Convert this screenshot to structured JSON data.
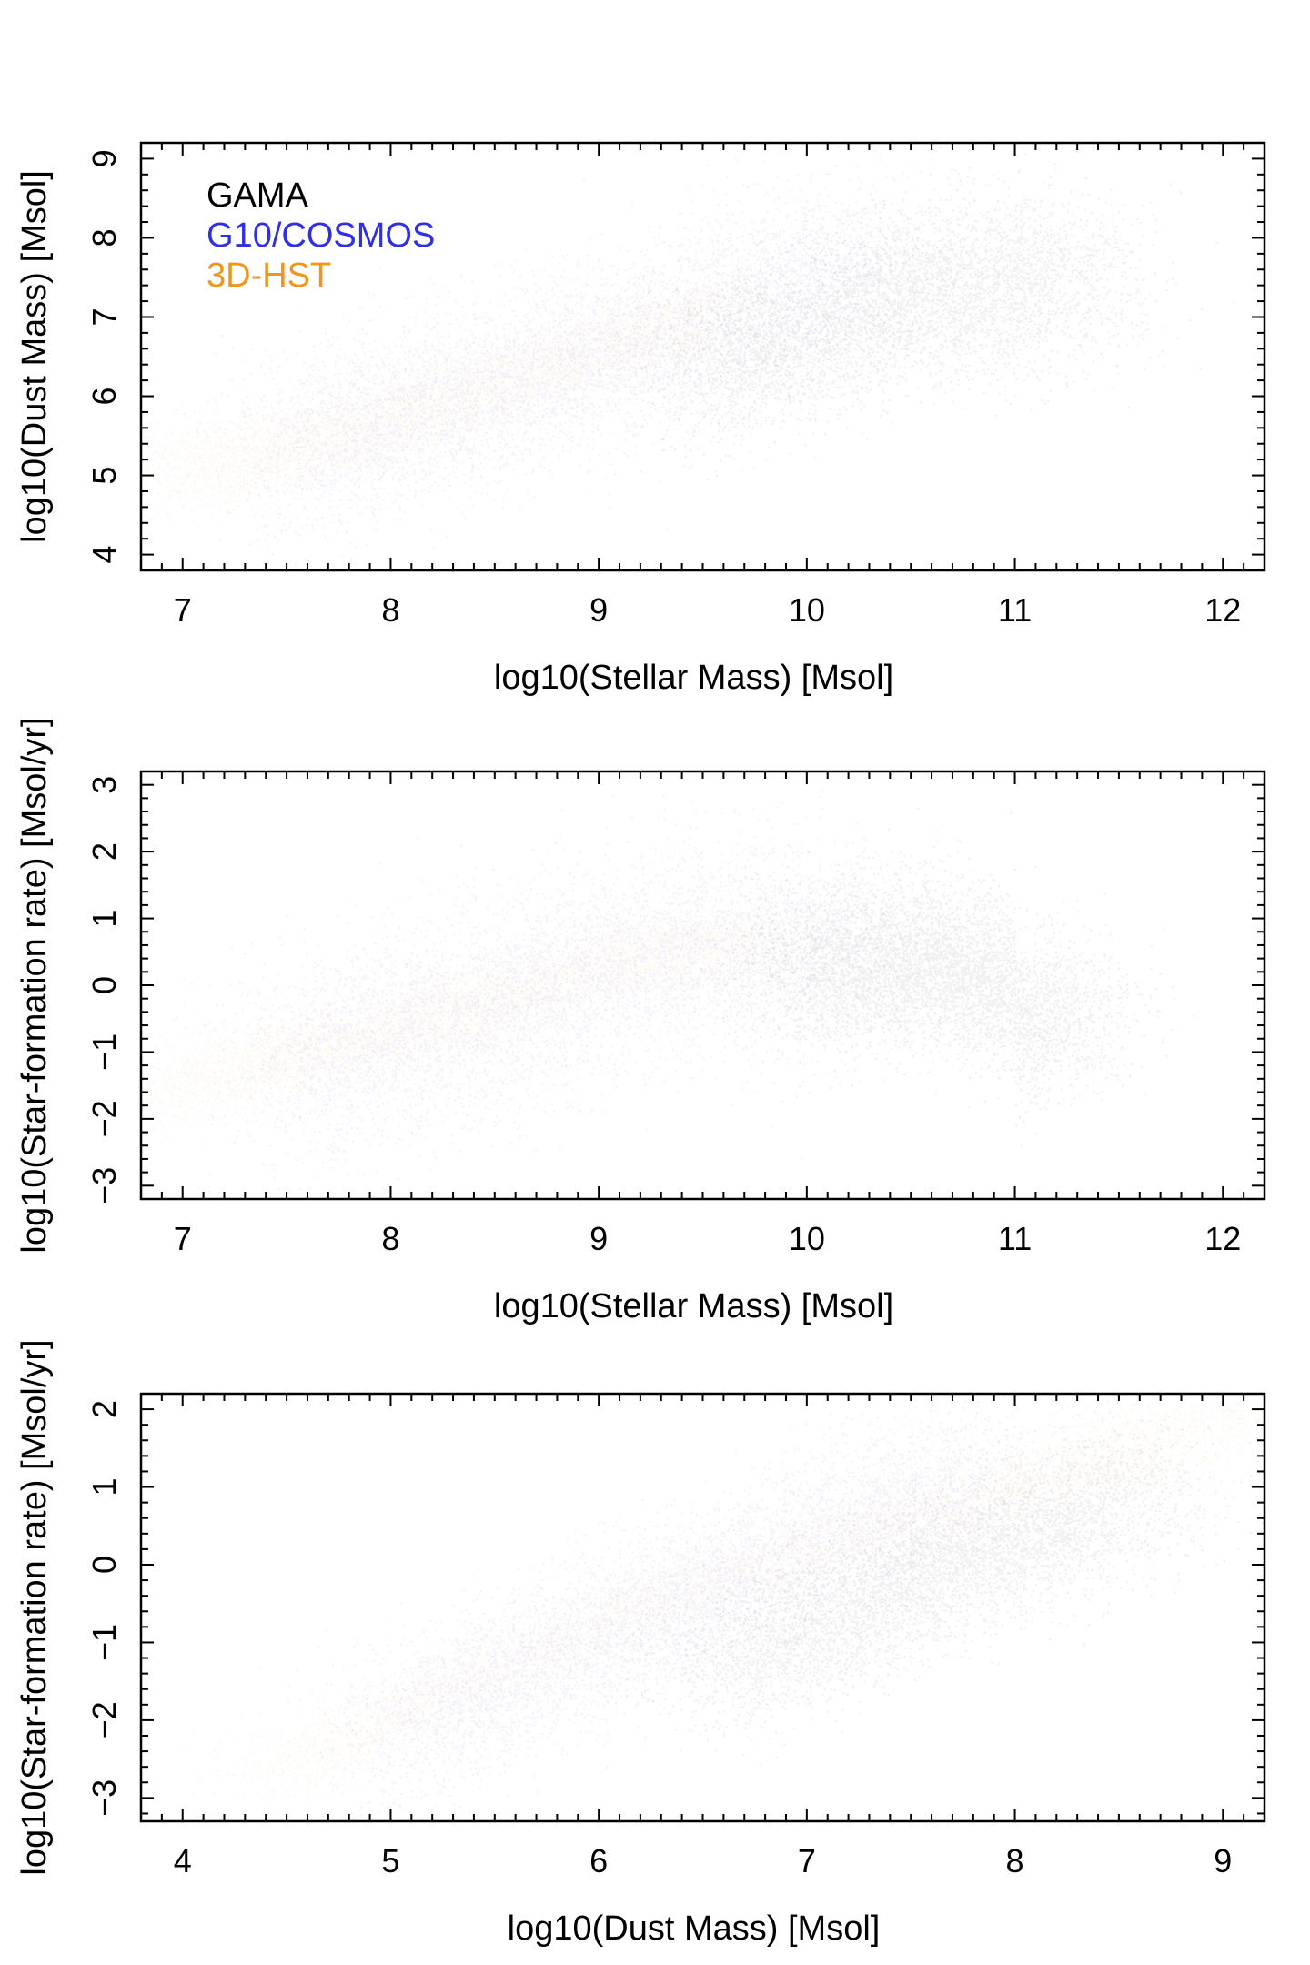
{
  "colors": {
    "gama": "#000000",
    "g10_cosmos": "#2f2fe8",
    "hst_3d": "#f0961e",
    "frame": "#000000",
    "background": "#ffffff"
  },
  "legend": [
    {
      "label": "GAMA",
      "color": "#000000"
    },
    {
      "label": "G10/COSMOS",
      "color": "#2f2fe8"
    },
    {
      "label": "3D-HST",
      "color": "#f0961e"
    }
  ],
  "chart_data": [
    {
      "id": "panel-1",
      "type": "scatter",
      "title": "",
      "xlabel": "log10(Stellar Mass) [Msol]",
      "ylabel": "log10(Dust Mass) [Msol]",
      "xlim": [
        6.8,
        12.2
      ],
      "ylim": [
        3.8,
        9.2
      ],
      "xticks": [
        7,
        8,
        9,
        10,
        11,
        12
      ],
      "yticks": [
        4,
        5,
        6,
        7,
        8,
        9
      ],
      "grid": false,
      "legend_position": "top-left",
      "series": [
        {
          "name": "GAMA",
          "color": "#000000",
          "centroids": [
            [
              9.5,
              6.4
            ],
            [
              10.0,
              6.9
            ],
            [
              10.5,
              7.3
            ],
            [
              10.9,
              7.4
            ],
            [
              11.3,
              7.5
            ]
          ],
          "spread_y": 0.55
        },
        {
          "name": "G10/COSMOS",
          "color": "#2f2fe8",
          "centroids": [
            [
              7.5,
              5.3
            ],
            [
              8.5,
              6.1
            ],
            [
              9.5,
              7.0
            ],
            [
              10.3,
              7.6
            ]
          ],
          "spread_y": 0.6
        },
        {
          "name": "3D-HST",
          "color": "#f0961e",
          "centroids": [
            [
              7.0,
              5.1
            ],
            [
              7.7,
              5.5
            ],
            [
              8.3,
              6.0
            ],
            [
              9.0,
              6.6
            ],
            [
              9.6,
              7.1
            ]
          ],
          "spread_y": 0.3
        }
      ]
    },
    {
      "id": "panel-2",
      "type": "scatter",
      "title": "",
      "xlabel": "log10(Stellar Mass) [Msol]",
      "ylabel": "log10(Star-formation rate) [Msol/yr]",
      "xlim": [
        6.8,
        12.2
      ],
      "ylim": [
        -3.2,
        3.2
      ],
      "xticks": [
        7,
        8,
        9,
        10,
        11,
        12
      ],
      "yticks": [
        -3,
        -2,
        -1,
        0,
        1,
        2,
        3
      ],
      "grid": false,
      "legend_position": "none",
      "series": [
        {
          "name": "GAMA",
          "color": "#000000",
          "centroids": [
            [
              10.0,
              0.3
            ],
            [
              10.6,
              0.4
            ],
            [
              11.0,
              0.0
            ],
            [
              10.9,
              -0.7
            ],
            [
              11.2,
              -0.4
            ]
          ],
          "spread_y": 0.6
        },
        {
          "name": "G10/COSMOS",
          "color": "#2f2fe8",
          "centroids": [
            [
              7.5,
              -1.2
            ],
            [
              8.5,
              -0.3
            ],
            [
              9.5,
              0.6
            ],
            [
              10.2,
              0.6
            ]
          ],
          "spread_y": 0.8
        },
        {
          "name": "3D-HST",
          "color": "#f0961e",
          "centroids": [
            [
              7.0,
              -1.5
            ],
            [
              7.8,
              -0.8
            ],
            [
              8.5,
              -0.2
            ],
            [
              9.2,
              0.5
            ],
            [
              9.8,
              0.6
            ]
          ],
          "spread_y": 0.35
        }
      ]
    },
    {
      "id": "panel-3",
      "type": "scatter",
      "title": "",
      "xlabel": "log10(Dust Mass) [Msol]",
      "ylabel": "log10(Star-formation rate) [Msol/yr]",
      "xlim": [
        3.8,
        9.2
      ],
      "ylim": [
        -3.3,
        2.2
      ],
      "xticks": [
        4,
        5,
        6,
        7,
        8,
        9
      ],
      "yticks": [
        -3,
        -2,
        -1,
        0,
        1,
        2
      ],
      "grid": false,
      "legend_position": "none",
      "series": [
        {
          "name": "GAMA",
          "color": "#000000",
          "centroids": [
            [
              6.6,
              -1.2
            ],
            [
              7.0,
              -0.8
            ],
            [
              7.5,
              -0.2
            ],
            [
              8.0,
              0.4
            ],
            [
              8.6,
              0.9
            ]
          ],
          "spread_y": 0.5
        },
        {
          "name": "G10/COSMOS",
          "color": "#2f2fe8",
          "centroids": [
            [
              5.0,
              -2.2
            ],
            [
              6.0,
              -0.9
            ],
            [
              7.0,
              0.3
            ],
            [
              7.8,
              1.1
            ]
          ],
          "spread_y": 0.55
        },
        {
          "name": "3D-HST",
          "color": "#f0961e",
          "centroids": [
            [
              4.5,
              -2.6
            ],
            [
              5.5,
              -1.3
            ],
            [
              6.3,
              -0.4
            ],
            [
              7.2,
              0.4
            ],
            [
              8.2,
              1.2
            ],
            [
              9.0,
              1.8
            ]
          ],
          "spread_y": 0.3
        }
      ]
    }
  ]
}
